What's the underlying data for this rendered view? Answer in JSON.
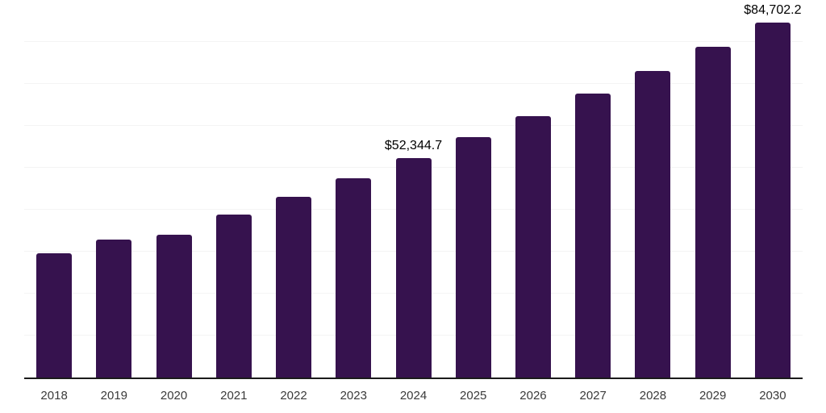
{
  "chart_data": {
    "type": "bar",
    "title": "",
    "xlabel": "",
    "ylabel": "",
    "categories": [
      "2018",
      "2019",
      "2020",
      "2021",
      "2022",
      "2023",
      "2024",
      "2025",
      "2026",
      "2027",
      "2028",
      "2029",
      "2030"
    ],
    "values": [
      29700,
      32900,
      34000,
      38900,
      43100,
      47500,
      52344.7,
      57300,
      62300,
      67600,
      73000,
      78800,
      84702.2
    ],
    "data_labels": [
      "",
      "",
      "",
      "",
      "",
      "",
      "$52,344.7",
      "",
      "",
      "",
      "",
      "",
      "$84,702.2"
    ],
    "ylim": [
      0,
      90000
    ],
    "grid_step": 10000,
    "grid": "horizontal-only",
    "legend": "none",
    "y_tick_labels_visible": false,
    "bar_color": "#36124e",
    "grid_color": "#f4f4f4",
    "axis_color": "#1b1b1b",
    "data_label_color": "#000000",
    "tick_label_color": "#3a3a3a"
  }
}
